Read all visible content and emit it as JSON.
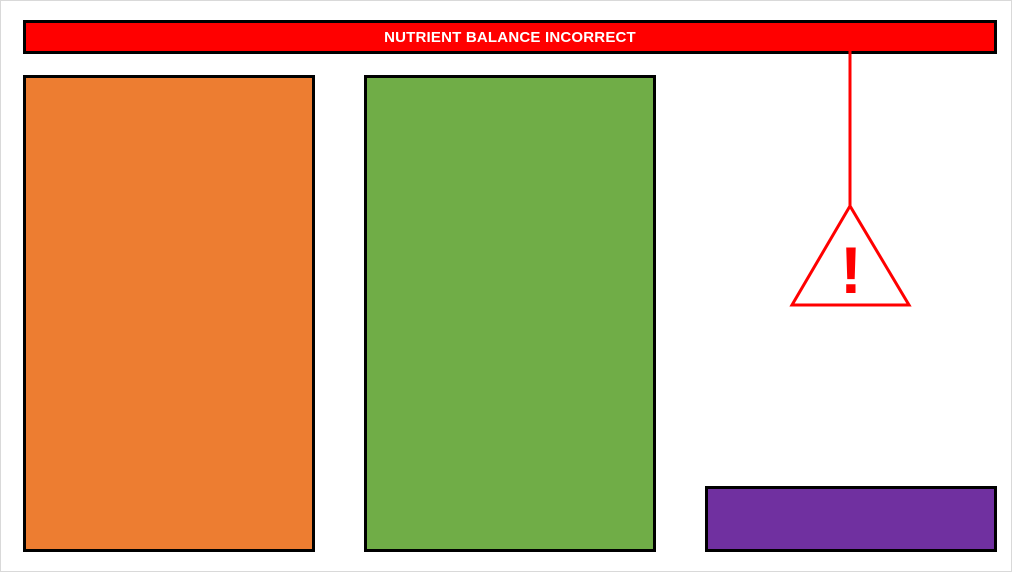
{
  "banner": {
    "text": "NUTRIENT BALANCE INCORRECT",
    "color": "#ff0000"
  },
  "bars": [
    {
      "name": "orange-block",
      "color": "#ed7d31"
    },
    {
      "name": "green-block",
      "color": "#70ad47"
    },
    {
      "name": "purple-block",
      "color": "#7030a0"
    }
  ],
  "warning": {
    "icon": "warning-triangle-icon",
    "glyph": "!",
    "color": "#ff0000"
  }
}
